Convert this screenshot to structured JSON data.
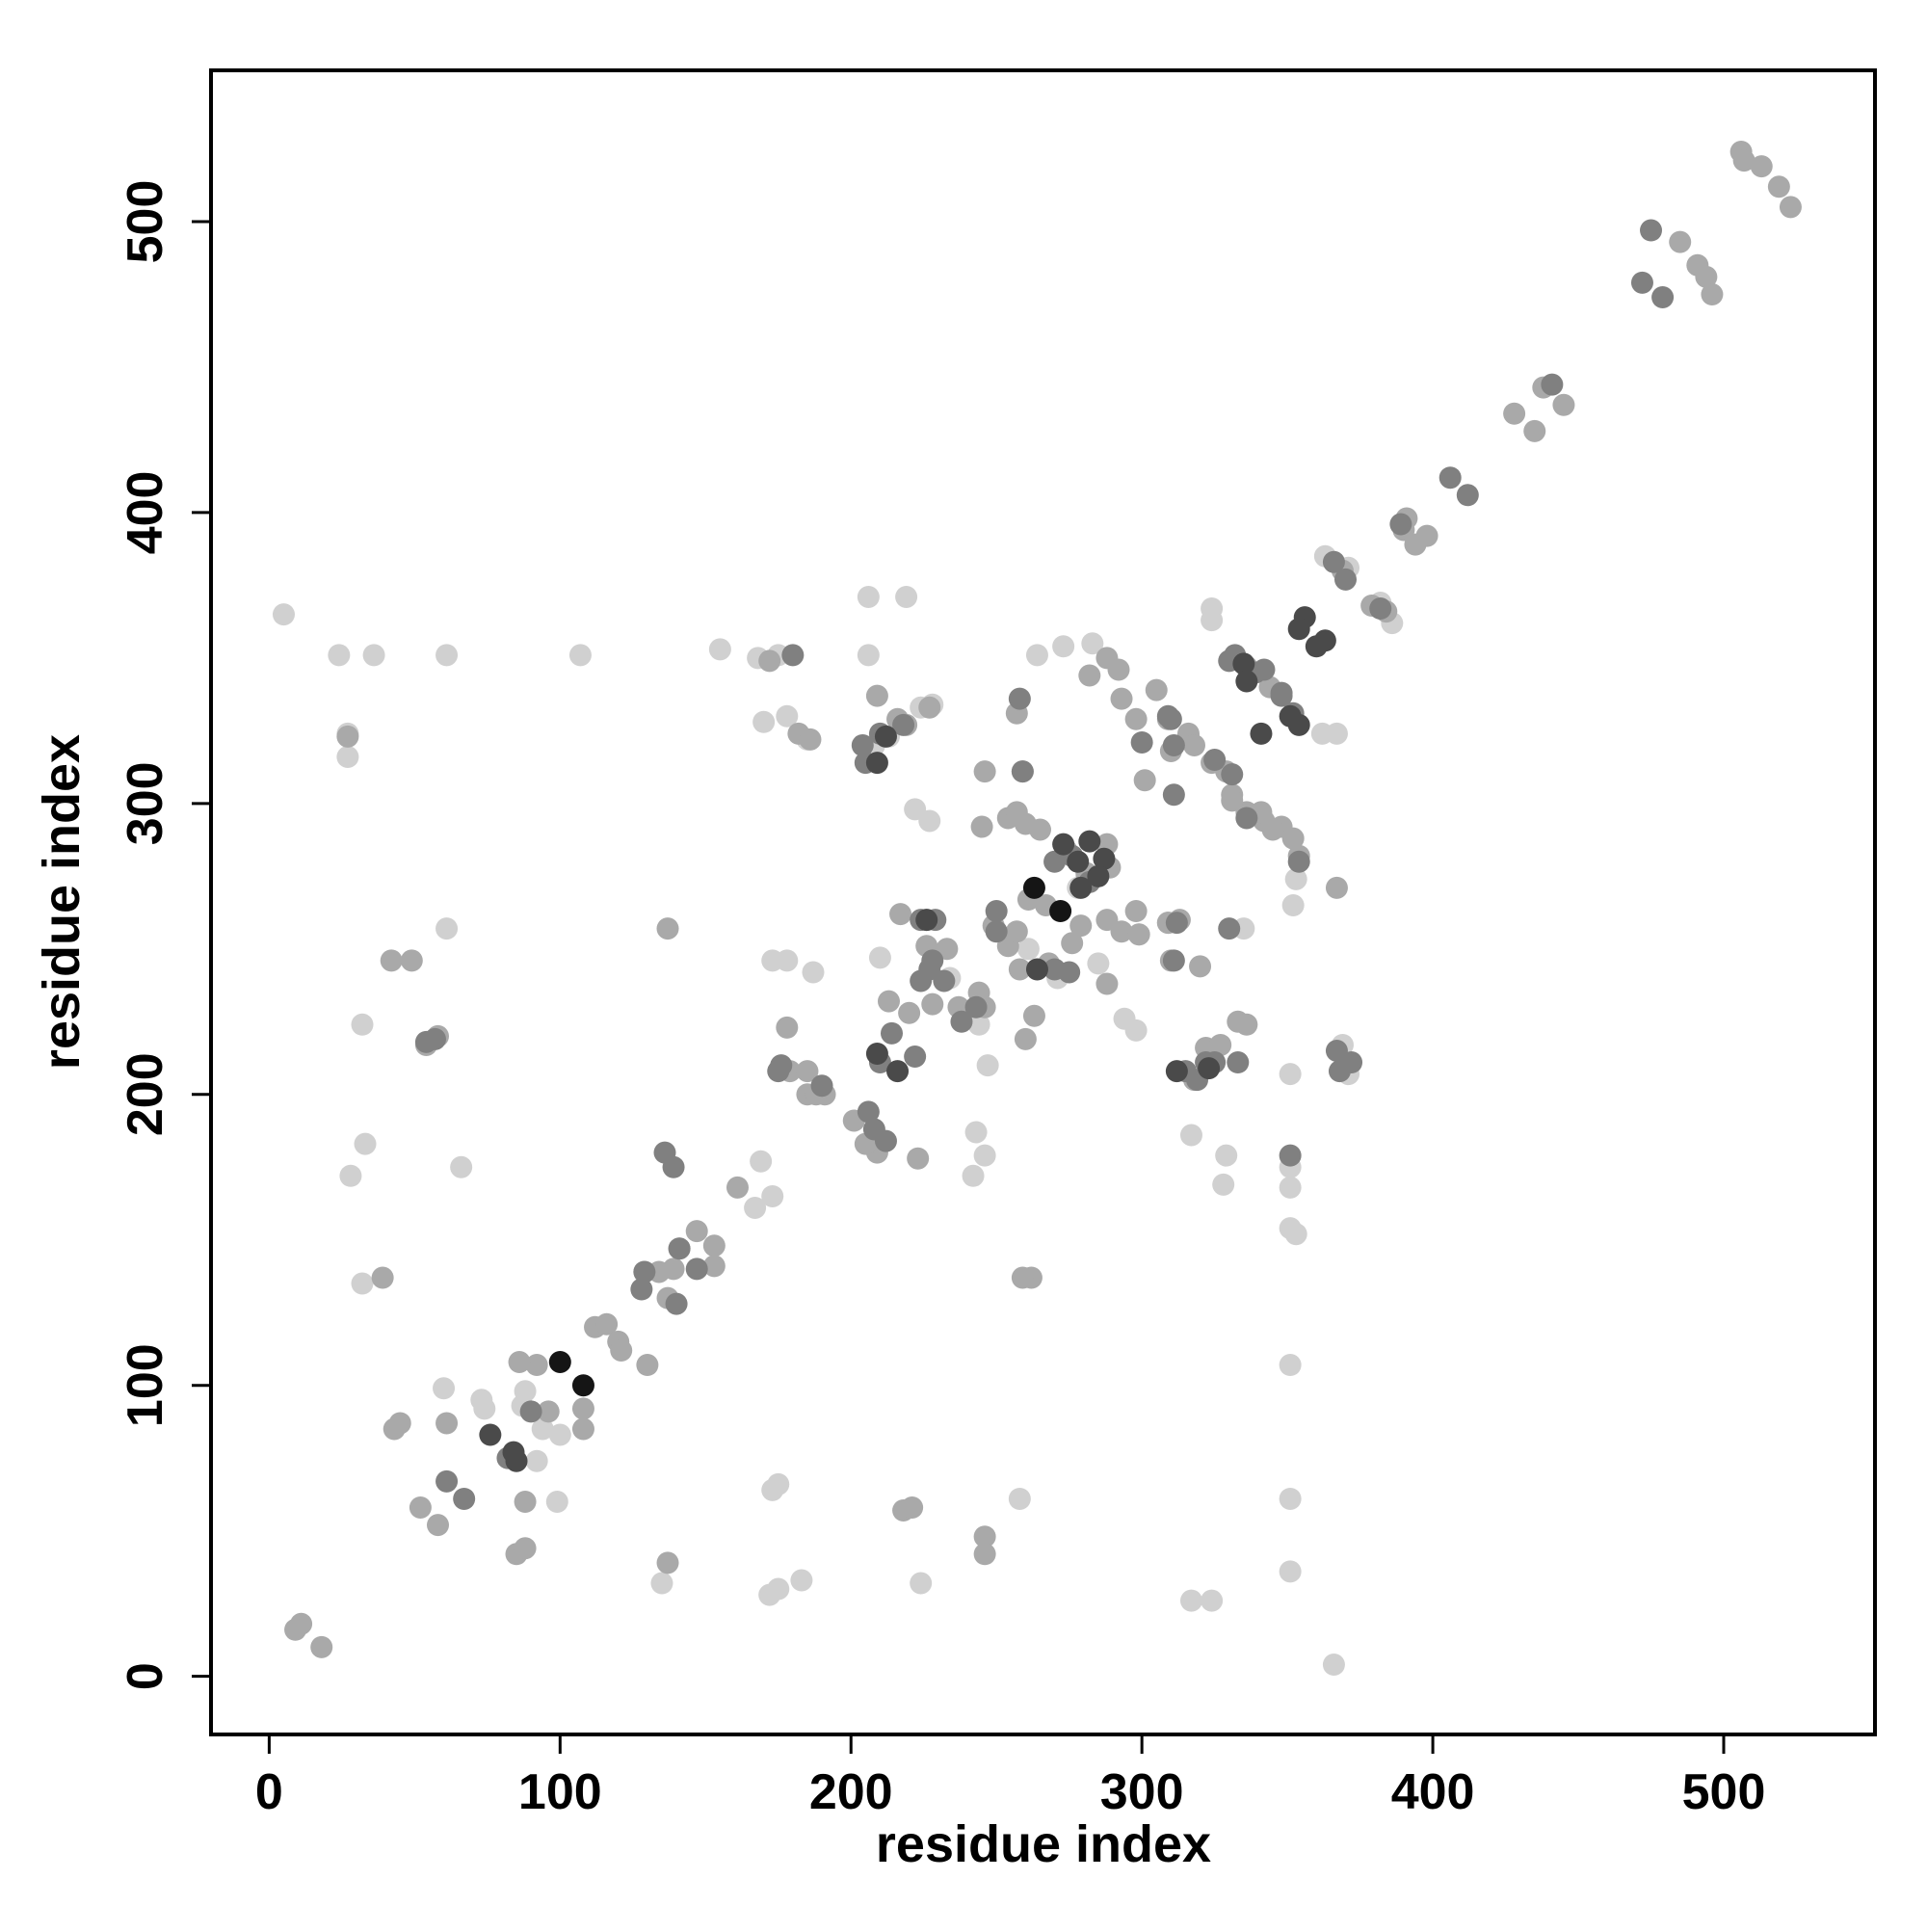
{
  "chart_data": {
    "type": "scatter",
    "x_label": "residue index",
    "y_label": "residue index",
    "xlim": [
      -20,
      552
    ],
    "ylim": [
      -20,
      552
    ],
    "xticks": [
      0,
      100,
      200,
      300,
      400,
      500
    ],
    "yticks": [
      0,
      100,
      200,
      300,
      400,
      500
    ],
    "grid": false,
    "series": [
      {
        "color": "#d0d0d0",
        "x": [
          5,
          24,
          36,
          61,
          107,
          27,
          27,
          32,
          33,
          28,
          66,
          32,
          61,
          60,
          74,
          92,
          99,
          173,
          175,
          172,
          175,
          183,
          135,
          224,
          258,
          317,
          324,
          351,
          351,
          351,
          366,
          351,
          351,
          353,
          351,
          351,
          247,
          246,
          242,
          243,
          155,
          168,
          175,
          206,
          206,
          210,
          173,
          178,
          170,
          178,
          185,
          187,
          222,
          227,
          219,
          264,
          273,
          283,
          324,
          324,
          362,
          367,
          363,
          371,
          386,
          382,
          353,
          352,
          294,
          298,
          317,
          329,
          328,
          335,
          369,
          371,
          73,
          88,
          87,
          100,
          94,
          167,
          169,
          173,
          278,
          281,
          244,
          234,
          261,
          271,
          285,
          299,
          208,
          213,
          224,
          228
        ],
        "y": [
          365,
          351,
          351,
          351,
          351,
          324,
          316,
          224,
          183,
          172,
          175,
          135,
          257,
          99,
          92,
          74,
          60,
          64,
          66,
          28,
          30,
          33,
          32,
          32,
          61,
          26,
          26,
          61,
          107,
          36,
          4,
          168,
          154,
          152,
          175,
          207,
          210,
          179,
          172,
          187,
          353,
          350,
          351,
          371,
          351,
          247,
          246,
          246,
          328,
          330,
          322,
          242,
          298,
          294,
          371,
          351,
          354,
          355,
          367,
          363,
          324,
          324,
          385,
          381,
          362,
          369,
          274,
          265,
          226,
          222,
          186,
          179,
          169,
          257,
          217,
          207,
          95,
          98,
          93,
          83,
          85,
          161,
          177,
          165,
          271,
          275,
          224,
          240,
          250,
          240,
          245,
          255,
          320,
          323,
          333,
          334
        ]
      },
      {
        "color": "#a9a9a9",
        "x": [
          11,
          9,
          18,
          27,
          42,
          49,
          43,
          45,
          39,
          52,
          58,
          58,
          54,
          137,
          137,
          139,
          129,
          137,
          141,
          147,
          153,
          153,
          161,
          178,
          179,
          185,
          191,
          201,
          209,
          205,
          223,
          217,
          226,
          213,
          220,
          228,
          237,
          246,
          246,
          257,
          259,
          260,
          245,
          262,
          259,
          246,
          246,
          218,
          221,
          261,
          267,
          279,
          288,
          289,
          288,
          298,
          309,
          310,
          293,
          298,
          301,
          310,
          316,
          329,
          331,
          336,
          342,
          348,
          354,
          336,
          344,
          367,
          369,
          379,
          384,
          390,
          391,
          394,
          398,
          428,
          435,
          438,
          445,
          491,
          494,
          496,
          485,
          506,
          513,
          519,
          523,
          507,
          260,
          263,
          320,
          313,
          276,
          268,
          92,
          86,
          88,
          85,
          88,
          61,
          96,
          108,
          108,
          112,
          116,
          120,
          121,
          130,
          134,
          172,
          182,
          186,
          185,
          188,
          209,
          216,
          219,
          227,
          226,
          233,
          244,
          249,
          254,
          257,
          258,
          254,
          257,
          265,
          274,
          281,
          282,
          288,
          292,
          305,
          309,
          316,
          318,
          324,
          331,
          341,
          345,
          352,
          322,
          327,
          333,
          336,
          318,
          309,
          288,
          293,
          299
        ],
        "y": [
          18,
          16,
          10,
          323,
          246,
          246,
          85,
          87,
          137,
          58,
          52,
          220,
          217,
          257,
          39,
          140,
          139,
          130,
          147,
          153,
          148,
          141,
          168,
          223,
          208,
          208,
          200,
          191,
          180,
          183,
          178,
          262,
          260,
          232,
          228,
          231,
          230,
          230,
          311,
          331,
          311,
          293,
          292,
          137,
          137,
          48,
          42,
          57,
          58,
          267,
          265,
          258,
          260,
          278,
          286,
          263,
          259,
          246,
          336,
          329,
          308,
          318,
          324,
          311,
          303,
          297,
          294,
          292,
          282,
          347,
          340,
          271,
          380,
          368,
          366,
          394,
          398,
          389,
          392,
          434,
          428,
          443,
          437,
          485,
          481,
          475,
          493,
          524,
          519,
          512,
          505,
          521,
          219,
          227,
          244,
          260,
          252,
          245,
          107,
          108,
          60,
          42,
          44,
          87,
          91,
          92,
          85,
          120,
          121,
          115,
          112,
          107,
          139,
          349,
          324,
          322,
          200,
          200,
          337,
          329,
          327,
          333,
          251,
          250,
          235,
          258,
          251,
          256,
          243,
          295,
          297,
          291,
          284,
          276,
          344,
          350,
          346,
          339,
          329,
          323,
          320,
          314,
          301,
          297,
          291,
          288,
          216,
          217,
          225,
          224,
          205,
          259,
          238,
          256,
          255
        ]
      },
      {
        "color": "#808080",
        "x": [
          54,
          57,
          61,
          67,
          82,
          90,
          136,
          139,
          141,
          147,
          128,
          140,
          129,
          180,
          210,
          214,
          222,
          204,
          210,
          218,
          229,
          224,
          228,
          227,
          238,
          243,
          258,
          259,
          270,
          276,
          282,
          275,
          270,
          311,
          310,
          311,
          312,
          311,
          331,
          336,
          339,
          348,
          352,
          325,
          333,
          322,
          351,
          354,
          368,
          372,
          367,
          382,
          370,
          366,
          406,
          412,
          389,
          441,
          475,
          472,
          479,
          330,
          315,
          319,
          325,
          330,
          332,
          342,
          348,
          309,
          300,
          250,
          232,
          224,
          205,
          206,
          208,
          212,
          176,
          175,
          190,
          250
        ],
        "y": [
          218,
          219,
          67,
          61,
          75,
          91,
          180,
          175,
          147,
          140,
          133,
          128,
          139,
          351,
          211,
          221,
          213,
          320,
          324,
          327,
          260,
          260,
          246,
          243,
          225,
          230,
          336,
          311,
          280,
          282,
          273,
          242,
          243,
          320,
          329,
          303,
          259,
          246,
          310,
          295,
          345,
          337,
          331,
          315,
          211,
          211,
          179,
          280,
          208,
          211,
          215,
          367,
          377,
          383,
          412,
          406,
          396,
          444,
          497,
          479,
          474,
          257,
          208,
          205,
          211,
          349,
          351,
          346,
          338,
          330,
          321,
          263,
          239,
          239,
          314,
          194,
          188,
          184,
          210,
          208,
          203,
          256
        ]
      },
      {
        "color": "#4a4a4a",
        "x": [
          76,
          84,
          85,
          216,
          209,
          212,
          209,
          226,
          273,
          282,
          287,
          278,
          360,
          356,
          354,
          363,
          335,
          336,
          312,
          323,
          341,
          351,
          354,
          264,
          285,
          279
        ],
        "y": [
          83,
          77,
          74,
          208,
          214,
          323,
          314,
          260,
          286,
          287,
          281,
          280,
          354,
          364,
          360,
          356,
          348,
          342,
          208,
          209,
          324,
          330,
          327,
          243,
          275,
          271
        ]
      },
      {
        "color": "#151515",
        "x": [
          100,
          108,
          263,
          272
        ],
        "y": [
          108,
          100,
          271,
          263
        ]
      }
    ]
  }
}
